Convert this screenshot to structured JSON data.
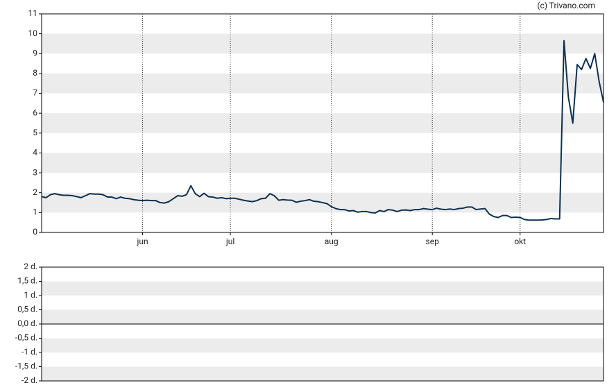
{
  "credit": "(c) Trivano.com",
  "chart_data": [
    {
      "type": "line",
      "categories": [
        null,
        null,
        null,
        null,
        null,
        null,
        null,
        null,
        null,
        null,
        null,
        null,
        null,
        null,
        null,
        null,
        null,
        null,
        null,
        null,
        null,
        null,
        null,
        "jun",
        null,
        null,
        null,
        null,
        null,
        null,
        null,
        null,
        null,
        null,
        null,
        null,
        null,
        null,
        null,
        null,
        null,
        null,
        null,
        "jul",
        null,
        null,
        null,
        null,
        null,
        null,
        null,
        null,
        null,
        null,
        null,
        null,
        null,
        null,
        null,
        null,
        null,
        null,
        null,
        null,
        null,
        null,
        "aug",
        null,
        null,
        null,
        null,
        null,
        null,
        null,
        null,
        null,
        null,
        null,
        null,
        null,
        null,
        null,
        null,
        null,
        null,
        null,
        null,
        null,
        null,
        "sep",
        null,
        null,
        null,
        null,
        null,
        null,
        null,
        null,
        null,
        null,
        null,
        null,
        null,
        null,
        null,
        null,
        null,
        null,
        null,
        "okt",
        null,
        null,
        null,
        null,
        null,
        null,
        null,
        null,
        null,
        null,
        null,
        null,
        null,
        null,
        null,
        null,
        null,
        null,
        null
      ],
      "series": [
        {
          "color": "#0d3050",
          "values": [
            1.8,
            1.75,
            1.9,
            1.95,
            1.9,
            1.87,
            1.87,
            1.85,
            1.8,
            1.75,
            1.85,
            1.95,
            1.93,
            1.93,
            1.9,
            1.78,
            1.78,
            1.7,
            1.78,
            1.72,
            1.7,
            1.65,
            1.62,
            1.6,
            1.62,
            1.6,
            1.6,
            1.5,
            1.48,
            1.55,
            1.7,
            1.85,
            1.82,
            1.9,
            2.35,
            1.95,
            1.8,
            1.97,
            1.8,
            1.78,
            1.72,
            1.75,
            1.7,
            1.72,
            1.72,
            1.67,
            1.62,
            1.58,
            1.55,
            1.6,
            1.7,
            1.72,
            1.95,
            1.85,
            1.62,
            1.65,
            1.63,
            1.62,
            1.52,
            1.57,
            1.6,
            1.65,
            1.57,
            1.55,
            1.5,
            1.45,
            1.3,
            1.2,
            1.15,
            1.15,
            1.08,
            1.1,
            1.02,
            1.05,
            1.05,
            1.0,
            0.98,
            1.1,
            1.05,
            1.15,
            1.12,
            1.05,
            1.12,
            1.13,
            1.1,
            1.15,
            1.15,
            1.2,
            1.17,
            1.15,
            1.22,
            1.17,
            1.15,
            1.18,
            1.15,
            1.2,
            1.22,
            1.28,
            1.28,
            1.15,
            1.18,
            1.2,
            0.92,
            0.8,
            0.75,
            0.85,
            0.85,
            0.75,
            0.77,
            0.75,
            0.65,
            0.62,
            0.62,
            0.62,
            0.63,
            0.65,
            0.7,
            0.68,
            0.68,
            9.65,
            6.8,
            5.5,
            8.45,
            8.2,
            8.75,
            8.25,
            9.0,
            7.6,
            6.55
          ]
        }
      ],
      "ylim": [
        0,
        11
      ],
      "yticks": [
        0,
        1,
        2,
        3,
        4,
        5,
        6,
        7,
        8,
        9,
        10,
        11
      ],
      "grid": true
    },
    {
      "type": "line",
      "ylim": [
        -2,
        2
      ],
      "yticks": [
        {
          "value": -2,
          "label": "-2 d."
        },
        {
          "value": -1.5,
          "label": "-1,5 d."
        },
        {
          "value": -1,
          "label": "-1 d."
        },
        {
          "value": -0.5,
          "label": "-0,5 d."
        },
        {
          "value": 0,
          "label": "0,0 d."
        },
        {
          "value": 0.5,
          "label": "0,5 d."
        },
        {
          "value": 1,
          "label": "1 d."
        },
        {
          "value": 1.5,
          "label": "1,5 d."
        },
        {
          "value": 2,
          "label": "2 d."
        }
      ],
      "grid": true
    }
  ]
}
